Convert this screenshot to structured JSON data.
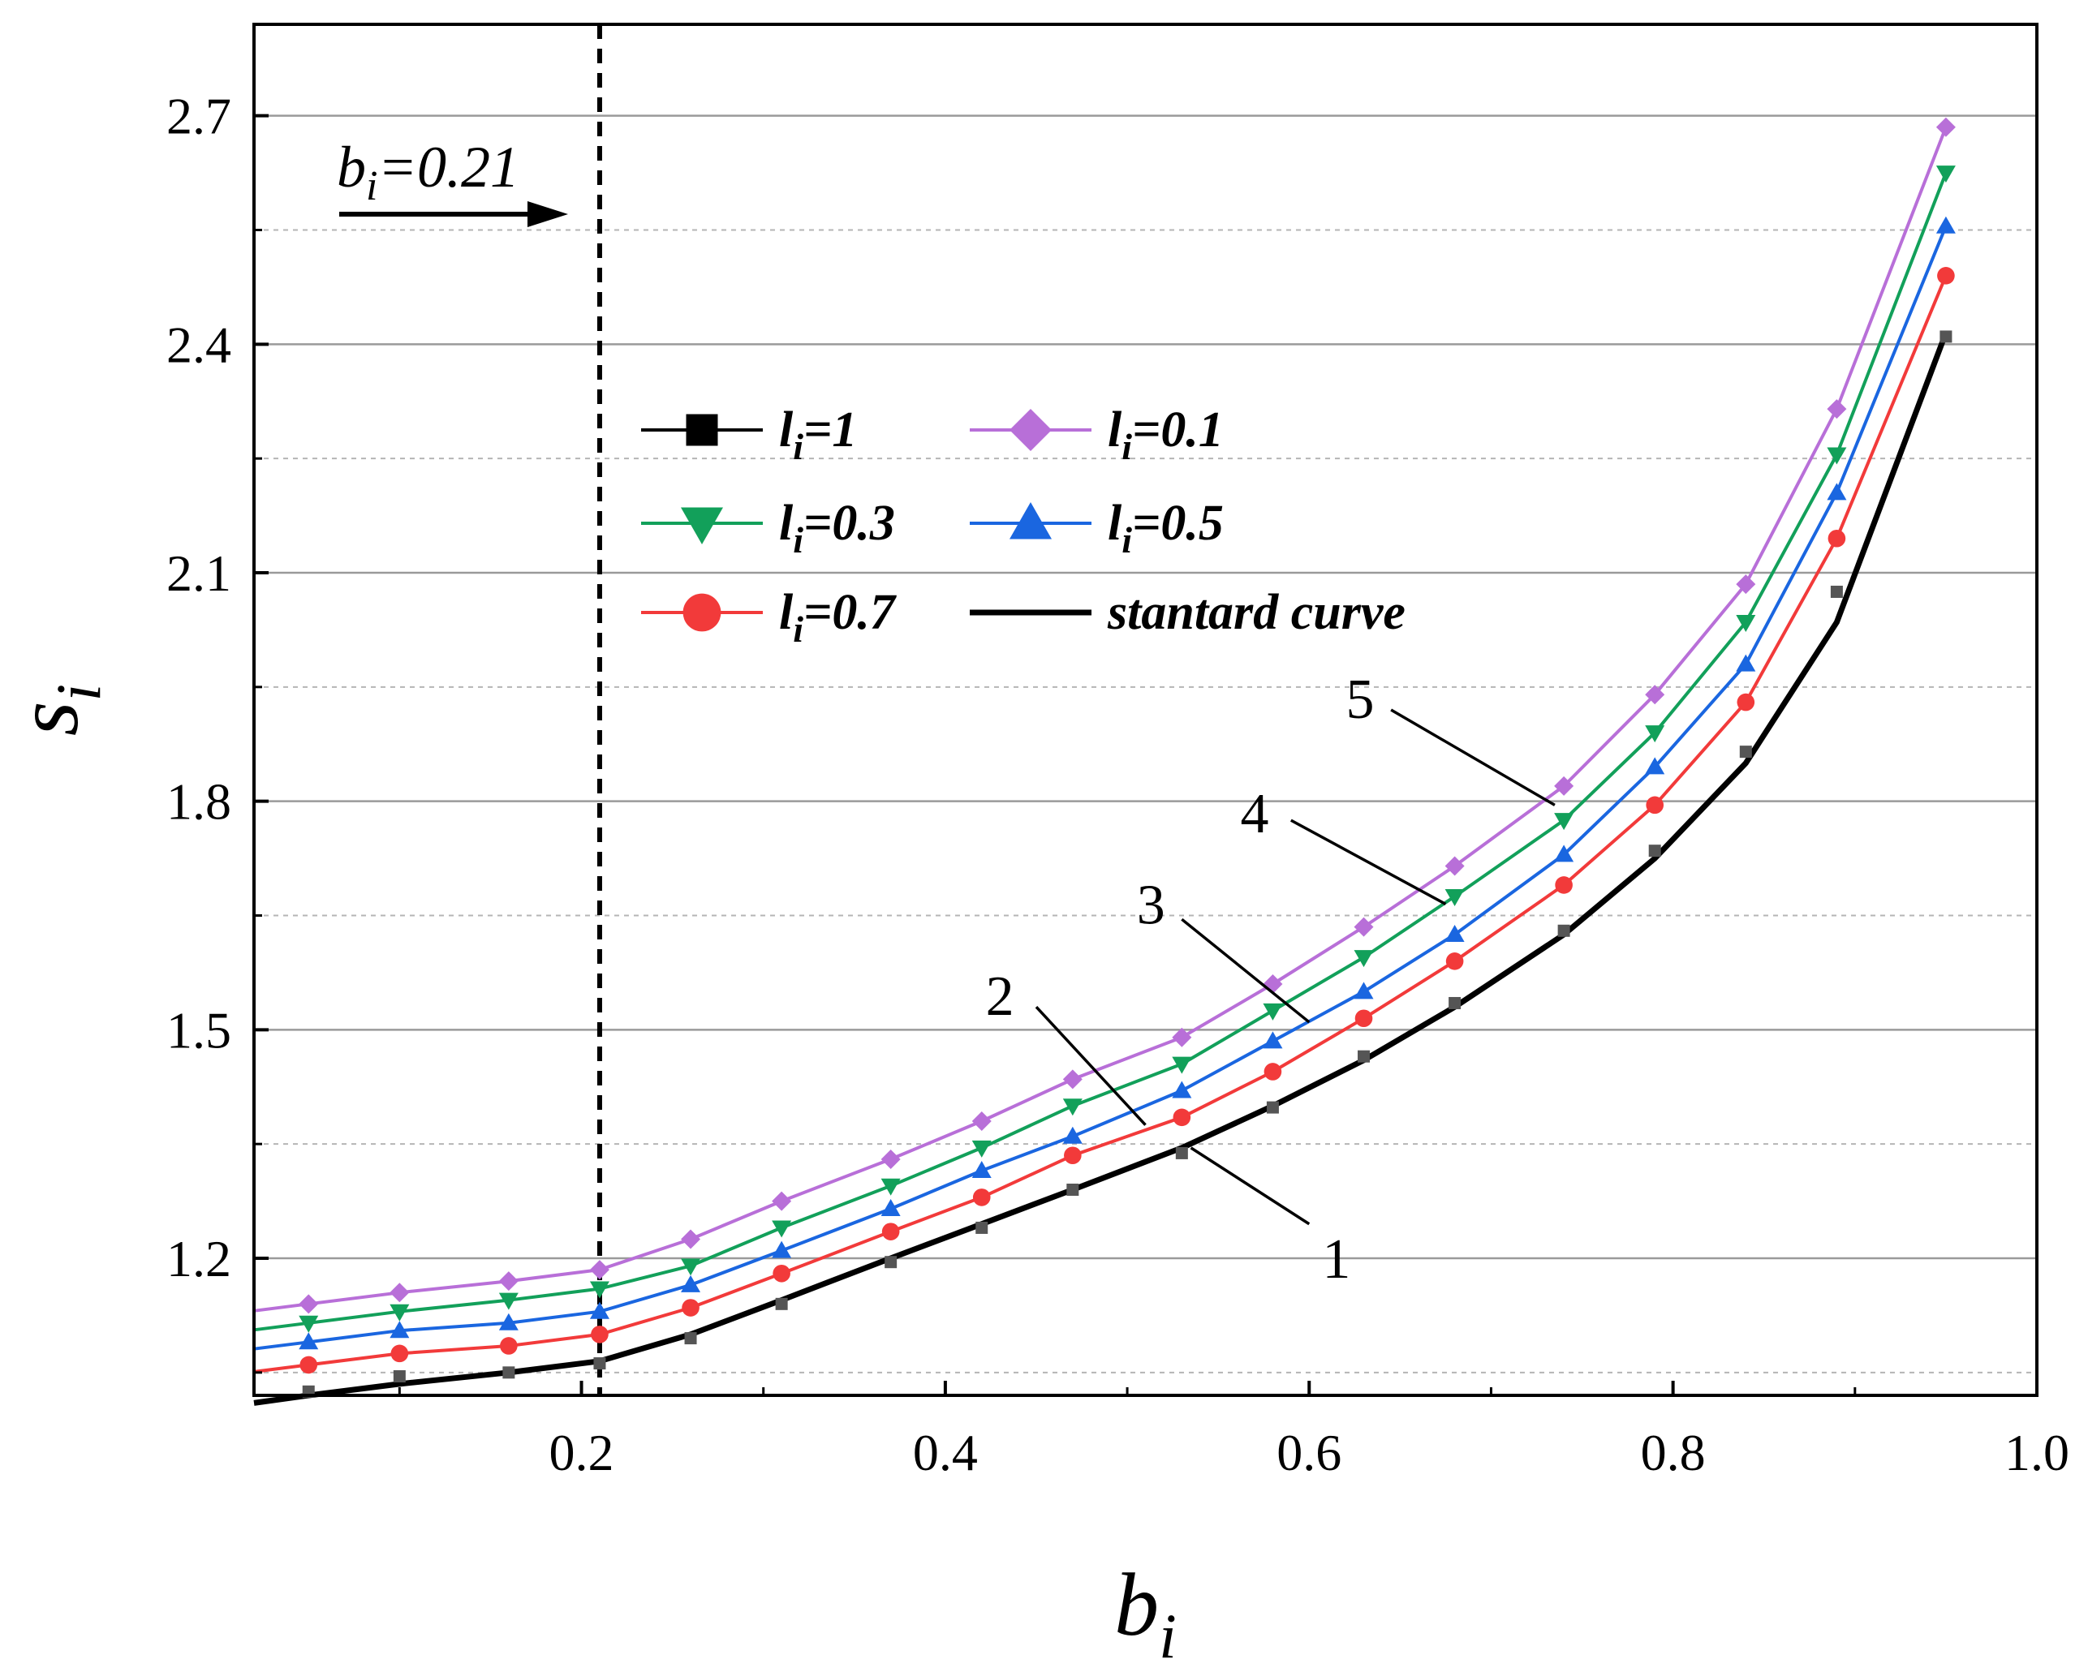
{
  "chart_data": {
    "type": "line",
    "xlabel": {
      "main": "b",
      "sub": "i"
    },
    "ylabel": {
      "main": "s",
      "sub": "i"
    },
    "xlim": [
      0.02,
      1.0
    ],
    "ylim": [
      1.02,
      2.82
    ],
    "xticks": [
      "0.2",
      "0.4",
      "0.6",
      "0.8",
      "1.0"
    ],
    "xtick_values": [
      0.2,
      0.4,
      0.6,
      0.8,
      1.0
    ],
    "yticks": [
      "1.2",
      "1.5",
      "1.8",
      "2.1",
      "2.4",
      "2.7"
    ],
    "ytick_values": [
      1.2,
      1.5,
      1.8,
      2.1,
      2.4,
      2.7
    ],
    "minor_y_gridlines": [
      1.05,
      1.35,
      1.65,
      1.95,
      2.25,
      2.55
    ],
    "grid": true,
    "legend_position": "upper-left",
    "threshold": {
      "x": 0.21,
      "label_main": "b",
      "label_sub": "i",
      "label_rest": "=0.21"
    },
    "x": [
      0.05,
      0.1,
      0.16,
      0.21,
      0.26,
      0.31,
      0.37,
      0.42,
      0.47,
      0.53,
      0.58,
      0.63,
      0.68,
      0.74,
      0.79,
      0.84,
      0.89,
      0.95
    ],
    "series": [
      {
        "name": "l_i=1",
        "label_main": "l",
        "label_sub": "i",
        "label_rest": "=1",
        "marker": "square",
        "color": "#000000",
        "marker_color": "#555555",
        "values": [
          1.025,
          1.045,
          1.05,
          1.062,
          1.095,
          1.14,
          1.195,
          1.24,
          1.29,
          1.338,
          1.398,
          1.465,
          1.535,
          1.63,
          1.735,
          1.865,
          2.075,
          2.41
        ]
      },
      {
        "name": "l_i=0.1",
        "label_main": "l",
        "label_sub": "i",
        "label_rest": "=0.1",
        "marker": "diamond",
        "color": "#b86fd8",
        "values": [
          1.14,
          1.155,
          1.17,
          1.185,
          1.225,
          1.275,
          1.33,
          1.38,
          1.435,
          1.49,
          1.56,
          1.635,
          1.715,
          1.82,
          1.94,
          2.085,
          2.315,
          2.685
        ]
      },
      {
        "name": "l_i=0.3",
        "label_main": "l",
        "label_sub": "i",
        "label_rest": "=0.3",
        "marker": "triangle-down",
        "color": "#12a05a",
        "values": [
          1.115,
          1.13,
          1.145,
          1.16,
          1.19,
          1.24,
          1.295,
          1.345,
          1.4,
          1.455,
          1.525,
          1.595,
          1.675,
          1.775,
          1.89,
          2.035,
          2.255,
          2.625
        ]
      },
      {
        "name": "l_i=0.5",
        "label_main": "l",
        "label_sub": "i",
        "label_rest": "=0.5",
        "marker": "triangle-up",
        "color": "#1a66e0",
        "values": [
          1.09,
          1.105,
          1.115,
          1.13,
          1.165,
          1.21,
          1.265,
          1.315,
          1.36,
          1.42,
          1.485,
          1.55,
          1.625,
          1.73,
          1.845,
          1.98,
          2.205,
          2.555
        ]
      },
      {
        "name": "l_i=0.7",
        "label_main": "l",
        "label_sub": "i",
        "label_rest": "=0.7",
        "marker": "circle",
        "color": "#f23a3a",
        "values": [
          1.06,
          1.075,
          1.085,
          1.1,
          1.135,
          1.18,
          1.235,
          1.28,
          1.335,
          1.385,
          1.445,
          1.515,
          1.59,
          1.69,
          1.795,
          1.93,
          2.145,
          2.49
        ]
      },
      {
        "name": "stantard curve",
        "label_main": "stantard curve",
        "label_sub": "",
        "label_rest": "",
        "marker": "none",
        "color": "#000000",
        "x": [
          0.02,
          0.05,
          0.1,
          0.16,
          0.21,
          0.26,
          0.31,
          0.37,
          0.42,
          0.47,
          0.53,
          0.58,
          0.63,
          0.68,
          0.74,
          0.79,
          0.84,
          0.89,
          0.95
        ],
        "values": [
          1.01,
          1.02,
          1.035,
          1.05,
          1.065,
          1.1,
          1.145,
          1.2,
          1.245,
          1.29,
          1.345,
          1.4,
          1.46,
          1.53,
          1.625,
          1.725,
          1.85,
          2.035,
          2.415
        ]
      }
    ],
    "curve_labels": [
      {
        "text": "5",
        "text_x": 0.628,
        "text_y": 1.935,
        "line": [
          [
            0.645,
            1.92
          ],
          [
            0.735,
            1.795
          ]
        ]
      },
      {
        "text": "4",
        "text_x": 0.57,
        "text_y": 1.785,
        "line": [
          [
            0.59,
            1.775
          ],
          [
            0.675,
            1.665
          ]
        ]
      },
      {
        "text": "3",
        "text_x": 0.513,
        "text_y": 1.665,
        "line": [
          [
            0.53,
            1.645
          ],
          [
            0.6,
            1.51
          ]
        ]
      },
      {
        "text": "2",
        "text_x": 0.43,
        "text_y": 1.545,
        "line": [
          [
            0.45,
            1.53
          ],
          [
            0.51,
            1.375
          ]
        ]
      },
      {
        "text": "1",
        "text_x": 0.615,
        "text_y": 1.2,
        "line": [
          [
            0.6,
            1.245
          ],
          [
            0.535,
            1.345
          ]
        ]
      }
    ]
  }
}
